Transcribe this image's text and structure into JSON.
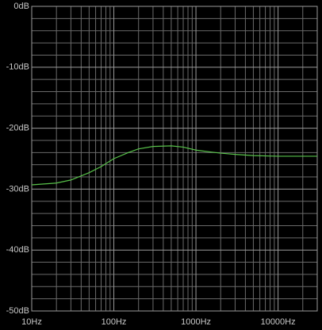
{
  "chart_data": {
    "type": "line",
    "log_x": true,
    "grid": true,
    "color": "#58c24a",
    "x": [
      10,
      20,
      30,
      50,
      70,
      100,
      150,
      200,
      300,
      500,
      700,
      1000,
      1500,
      2000,
      3000,
      5000,
      10000,
      20000,
      30000
    ],
    "values": [
      -29.3,
      -29.0,
      -28.5,
      -27.3,
      -26.3,
      -25.0,
      -24.0,
      -23.4,
      -23.0,
      -22.9,
      -23.1,
      -23.6,
      -23.9,
      -24.1,
      -24.3,
      -24.5,
      -24.6,
      -24.6,
      -24.6
    ],
    "xlim": [
      10,
      30000
    ],
    "ylim": [
      -50,
      0
    ],
    "xticks": [
      {
        "value": 10,
        "label": "10Hz"
      },
      {
        "value": 100,
        "label": "100Hz"
      },
      {
        "value": 1000,
        "label": "1000Hz"
      },
      {
        "value": 10000,
        "label": "10000Hz"
      }
    ],
    "yticks": [
      {
        "value": 0,
        "label": "0dB"
      },
      {
        "value": -10,
        "label": "-10dB"
      },
      {
        "value": -20,
        "label": "-20dB"
      },
      {
        "value": -30,
        "label": "-30dB"
      },
      {
        "value": -40,
        "label": "-40dB"
      },
      {
        "value": -50,
        "label": "-50dB"
      }
    ],
    "xminorticks": [
      20,
      30,
      40,
      50,
      60,
      70,
      80,
      90,
      200,
      300,
      400,
      500,
      600,
      700,
      800,
      900,
      2000,
      3000,
      4000,
      5000,
      6000,
      7000,
      8000,
      9000,
      20000,
      30000
    ],
    "yminorticks": [
      -2,
      -4,
      -6,
      -8,
      -12,
      -14,
      -16,
      -18,
      -22,
      -24,
      -26,
      -28,
      -32,
      -34,
      -36,
      -38,
      -42,
      -44,
      -46,
      -48
    ]
  }
}
